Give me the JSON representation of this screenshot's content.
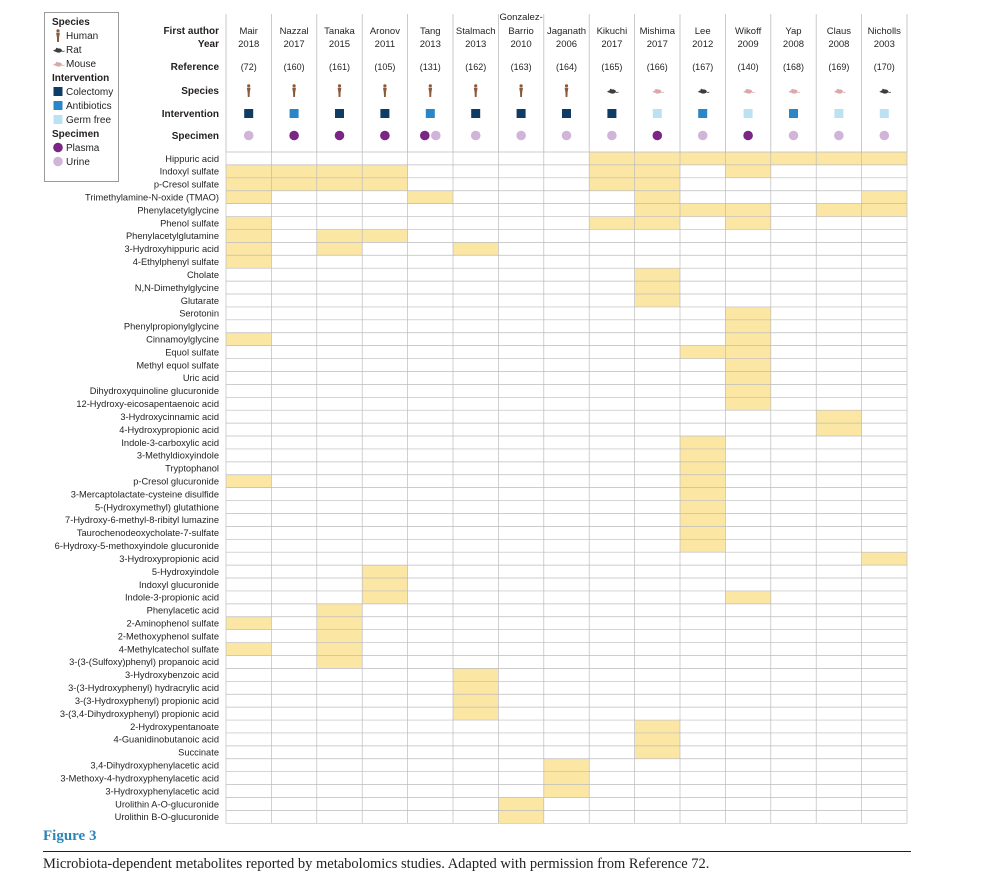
{
  "legend": {
    "species_title": "Species",
    "species": [
      {
        "key": "human",
        "label": "Human"
      },
      {
        "key": "rat",
        "label": "Rat"
      },
      {
        "key": "mouse",
        "label": "Mouse"
      }
    ],
    "intervention_title": "Intervention",
    "interventions": [
      {
        "key": "colectomy",
        "label": "Colectomy"
      },
      {
        "key": "antibiotics",
        "label": "Antibiotics"
      },
      {
        "key": "germfree",
        "label": "Germ free"
      }
    ],
    "specimen_title": "Specimen",
    "specimens": [
      {
        "key": "plasma",
        "label": "Plasma"
      },
      {
        "key": "urine",
        "label": "Urine"
      }
    ]
  },
  "row_labels": {
    "first_author": "First author",
    "year": "Year",
    "reference": "Reference",
    "species": "Species",
    "intervention": "Intervention",
    "specimen": "Specimen"
  },
  "colors": {
    "highlight": "#fbe6a4",
    "grid": "#bcbcbc",
    "human": "#8a5a3a",
    "rat": "#3d3d3d",
    "mouse": "#d9a8a8",
    "colectomy": "#0f3c64",
    "antibiotics": "#2a86c6",
    "germfree": "#bce1f3",
    "plasma": "#7b2585",
    "urine": "#d1b5d8",
    "figure_label": "#2a86b8"
  },
  "studies": [
    {
      "author": [
        "Mair"
      ],
      "year": "2018",
      "ref": "(72)",
      "species": "human",
      "intervention": "colectomy",
      "specimen": [
        "urine"
      ]
    },
    {
      "author": [
        "Nazzal"
      ],
      "year": "2017",
      "ref": "(160)",
      "species": "human",
      "intervention": "antibiotics",
      "specimen": [
        "plasma"
      ]
    },
    {
      "author": [
        "Tanaka"
      ],
      "year": "2015",
      "ref": "(161)",
      "species": "human",
      "intervention": "colectomy",
      "specimen": [
        "plasma"
      ]
    },
    {
      "author": [
        "Aronov"
      ],
      "year": "2011",
      "ref": "(105)",
      "species": "human",
      "intervention": "colectomy",
      "specimen": [
        "plasma"
      ]
    },
    {
      "author": [
        "Tang"
      ],
      "year": "2013",
      "ref": "(131)",
      "species": "human",
      "intervention": "antibiotics",
      "specimen": [
        "plasma",
        "urine"
      ]
    },
    {
      "author": [
        "Stalmach"
      ],
      "year": "2013",
      "ref": "(162)",
      "species": "human",
      "intervention": "colectomy",
      "specimen": [
        "urine"
      ]
    },
    {
      "author": [
        "Gonzalez-",
        "Barrio"
      ],
      "year": "2010",
      "ref": "(163)",
      "species": "human",
      "intervention": "colectomy",
      "specimen": [
        "urine"
      ]
    },
    {
      "author": [
        "Jaganath"
      ],
      "year": "2006",
      "ref": "(164)",
      "species": "human",
      "intervention": "colectomy",
      "specimen": [
        "urine"
      ]
    },
    {
      "author": [
        "Kikuchi"
      ],
      "year": "2017",
      "ref": "(165)",
      "species": "rat",
      "intervention": "colectomy",
      "specimen": [
        "urine"
      ]
    },
    {
      "author": [
        "Mishima"
      ],
      "year": "2017",
      "ref": "(166)",
      "species": "mouse",
      "intervention": "germfree",
      "specimen": [
        "plasma"
      ]
    },
    {
      "author": [
        "Lee"
      ],
      "year": "2012",
      "ref": "(167)",
      "species": "rat",
      "intervention": "antibiotics",
      "specimen": [
        "urine"
      ]
    },
    {
      "author": [
        "Wikoff"
      ],
      "year": "2009",
      "ref": "(140)",
      "species": "mouse",
      "intervention": "germfree",
      "specimen": [
        "plasma"
      ]
    },
    {
      "author": [
        "Yap"
      ],
      "year": "2008",
      "ref": "(168)",
      "species": "mouse",
      "intervention": "antibiotics",
      "specimen": [
        "urine"
      ]
    },
    {
      "author": [
        "Claus"
      ],
      "year": "2008",
      "ref": "(169)",
      "species": "mouse",
      "intervention": "germfree",
      "specimen": [
        "urine"
      ]
    },
    {
      "author": [
        "Nicholls"
      ],
      "year": "2003",
      "ref": "(170)",
      "species": "rat",
      "intervention": "germfree",
      "specimen": [
        "urine"
      ]
    }
  ],
  "metabolites": [
    {
      "name": "Hippuric acid",
      "cols": [
        8,
        9,
        10,
        11,
        12,
        13,
        14
      ]
    },
    {
      "name": "Indoxyl sulfate",
      "cols": [
        0,
        1,
        2,
        3,
        8,
        9,
        11
      ]
    },
    {
      "name": "p-Cresol sulfate",
      "cols": [
        0,
        1,
        2,
        3,
        8,
        9
      ]
    },
    {
      "name": "Trimethylamine-N-oxide (TMAO)",
      "cols": [
        0,
        4,
        9,
        14
      ]
    },
    {
      "name": "Phenylacetylglycine",
      "cols": [
        9,
        10,
        11,
        13,
        14
      ]
    },
    {
      "name": "Phenol sulfate",
      "cols": [
        0,
        8,
        9,
        11
      ]
    },
    {
      "name": "Phenylacetylglutamine",
      "cols": [
        0,
        2,
        3
      ]
    },
    {
      "name": "3-Hydroxyhippuric acid",
      "cols": [
        0,
        2,
        5
      ]
    },
    {
      "name": "4-Ethylphenyl sulfate",
      "cols": [
        0
      ]
    },
    {
      "name": "Cholate",
      "cols": [
        9
      ]
    },
    {
      "name": "N,N-Dimethylglycine",
      "cols": [
        9
      ]
    },
    {
      "name": "Glutarate",
      "cols": [
        9
      ]
    },
    {
      "name": "Serotonin",
      "cols": [
        11
      ]
    },
    {
      "name": "Phenylpropionylglycine",
      "cols": [
        11
      ]
    },
    {
      "name": "Cinnamoylglycine",
      "cols": [
        0,
        11
      ]
    },
    {
      "name": "Equol sulfate",
      "cols": [
        10,
        11
      ]
    },
    {
      "name": "Methyl equol sulfate",
      "cols": [
        11
      ]
    },
    {
      "name": "Uric acid",
      "cols": [
        11
      ]
    },
    {
      "name": "Dihydroxyquinoline glucuronide",
      "cols": [
        11
      ]
    },
    {
      "name": "12-Hydroxy-eicosapentaenoic acid",
      "cols": [
        11
      ]
    },
    {
      "name": "3-Hydroxycinnamic acid",
      "cols": [
        13
      ]
    },
    {
      "name": "4-Hydroxypropionic acid",
      "cols": [
        13
      ]
    },
    {
      "name": "Indole-3-carboxylic acid",
      "cols": [
        10
      ]
    },
    {
      "name": "3-Methyldioxyindole",
      "cols": [
        10
      ]
    },
    {
      "name": "Tryptophanol",
      "cols": [
        10
      ]
    },
    {
      "name": "p-Cresol glucuronide",
      "cols": [
        0,
        10
      ]
    },
    {
      "name": "3-Mercaptolactate-cysteine disulfide",
      "cols": [
        10
      ]
    },
    {
      "name": "5-(Hydroxymethyl) glutathione",
      "cols": [
        10
      ]
    },
    {
      "name": "7-Hydroxy-6-methyl-8-ribityl lumazine",
      "cols": [
        10
      ]
    },
    {
      "name": "Taurochenodeoxycholate-7-sulfate",
      "cols": [
        10
      ]
    },
    {
      "name": "6-Hydroxy-5-methoxyindole glucuronide",
      "cols": [
        10
      ]
    },
    {
      "name": "3-Hydroxypropionic acid",
      "cols": [
        14
      ]
    },
    {
      "name": "5-Hydroxyindole",
      "cols": [
        3
      ]
    },
    {
      "name": "Indoxyl glucuronide",
      "cols": [
        3
      ]
    },
    {
      "name": "Indole-3-propionic acid",
      "cols": [
        3,
        11
      ]
    },
    {
      "name": "Phenylacetic acid",
      "cols": [
        2
      ]
    },
    {
      "name": "2-Aminophenol sulfate",
      "cols": [
        0,
        2
      ]
    },
    {
      "name": "2-Methoxyphenol sulfate",
      "cols": [
        2
      ]
    },
    {
      "name": "4-Methylcatechol sulfate",
      "cols": [
        0,
        2
      ]
    },
    {
      "name": "3-(3-(Sulfoxy)phenyl) propanoic acid",
      "cols": [
        2
      ]
    },
    {
      "name": "3-Hydroxybenzoic acid",
      "cols": [
        5
      ]
    },
    {
      "name": "3-(3-Hydroxyphenyl) hydracrylic acid",
      "cols": [
        5
      ]
    },
    {
      "name": "3-(3-Hydroxyphenyl) propionic acid",
      "cols": [
        5
      ]
    },
    {
      "name": "3-(3,4-Dihydroxyphenyl) propionic acid",
      "cols": [
        5
      ]
    },
    {
      "name": "2-Hydroxypentanoate",
      "cols": [
        9
      ]
    },
    {
      "name": "4-Guanidinobutanoic acid",
      "cols": [
        9
      ]
    },
    {
      "name": "Succinate",
      "cols": [
        9
      ]
    },
    {
      "name": "3,4-Dihydroxyphenylacetic acid",
      "cols": [
        7
      ]
    },
    {
      "name": "3-Methoxy-4-hydroxyphenylacetic acid",
      "cols": [
        7
      ]
    },
    {
      "name": "3-Hydroxyphenylacetic acid",
      "cols": [
        7
      ]
    },
    {
      "name": "Urolithin A-O-glucuronide",
      "cols": [
        6
      ]
    },
    {
      "name": "Urolithin B-O-glucuronide",
      "cols": [
        6
      ]
    }
  ],
  "figure_label": "Figure 3",
  "caption": "Microbiota-dependent metabolites reported by metabolomics studies. Adapted with permission from Reference 72."
}
